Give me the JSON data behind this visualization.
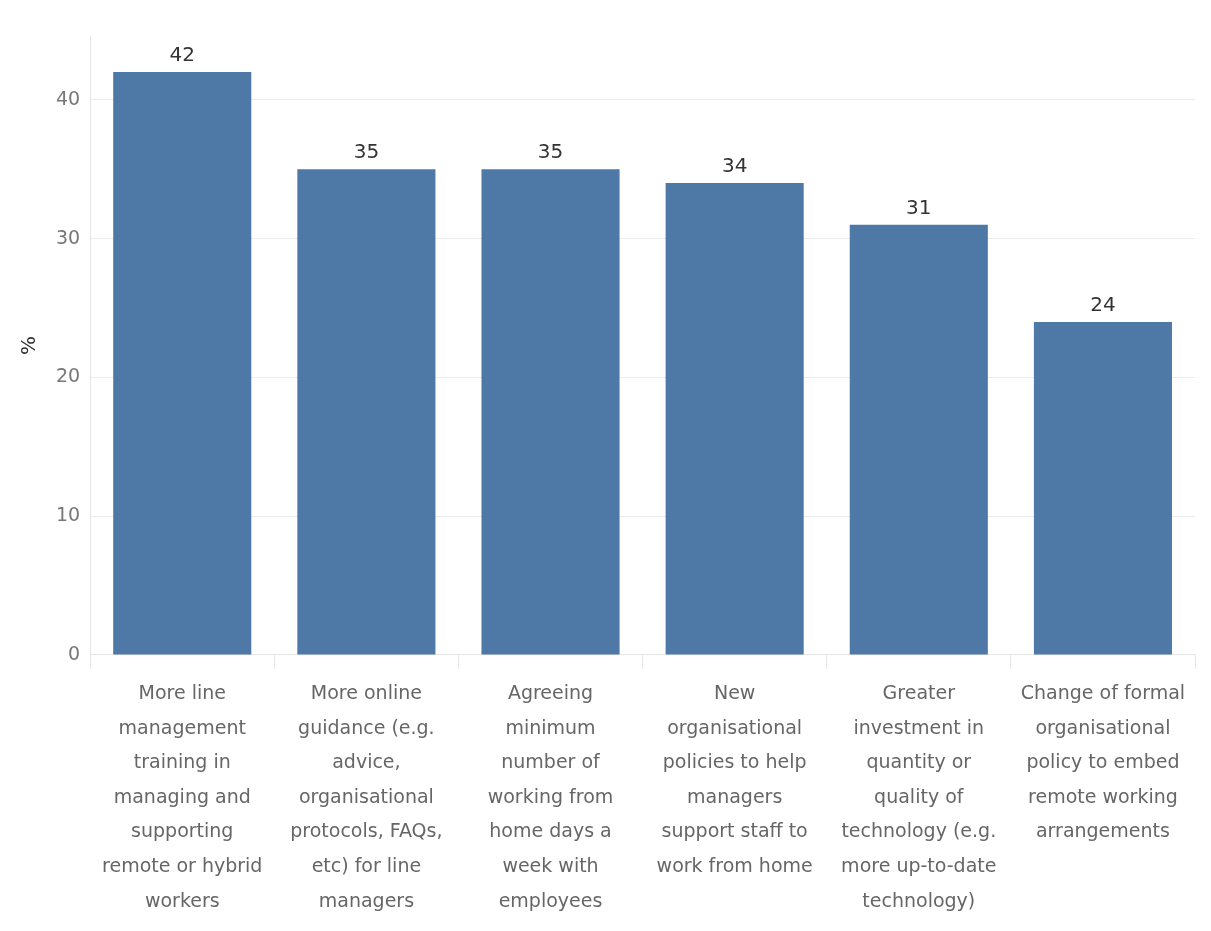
{
  "chart_data": {
    "type": "bar",
    "ylabel": "%",
    "categories": [
      "More line management training in managing and supporting remote or hybrid workers",
      "More online guidance (e.g. advice, organisational protocols, FAQs, etc) for line managers",
      "Agreeing minimum number of working from home days a week with employees",
      "New organisational policies to help managers support staff to work from home",
      "Greater investment in quantity or quality of technology (e.g. more up-to-date technology)",
      "Change of formal organisational policy to embed remote working arrangements"
    ],
    "values": [
      42,
      35,
      35,
      34,
      31,
      24
    ],
    "color": "#4e79a7",
    "ylim": [
      0,
      44.6
    ],
    "yticks": [
      0,
      10,
      20,
      30,
      40
    ],
    "grid": "y",
    "data_labels": true
  }
}
